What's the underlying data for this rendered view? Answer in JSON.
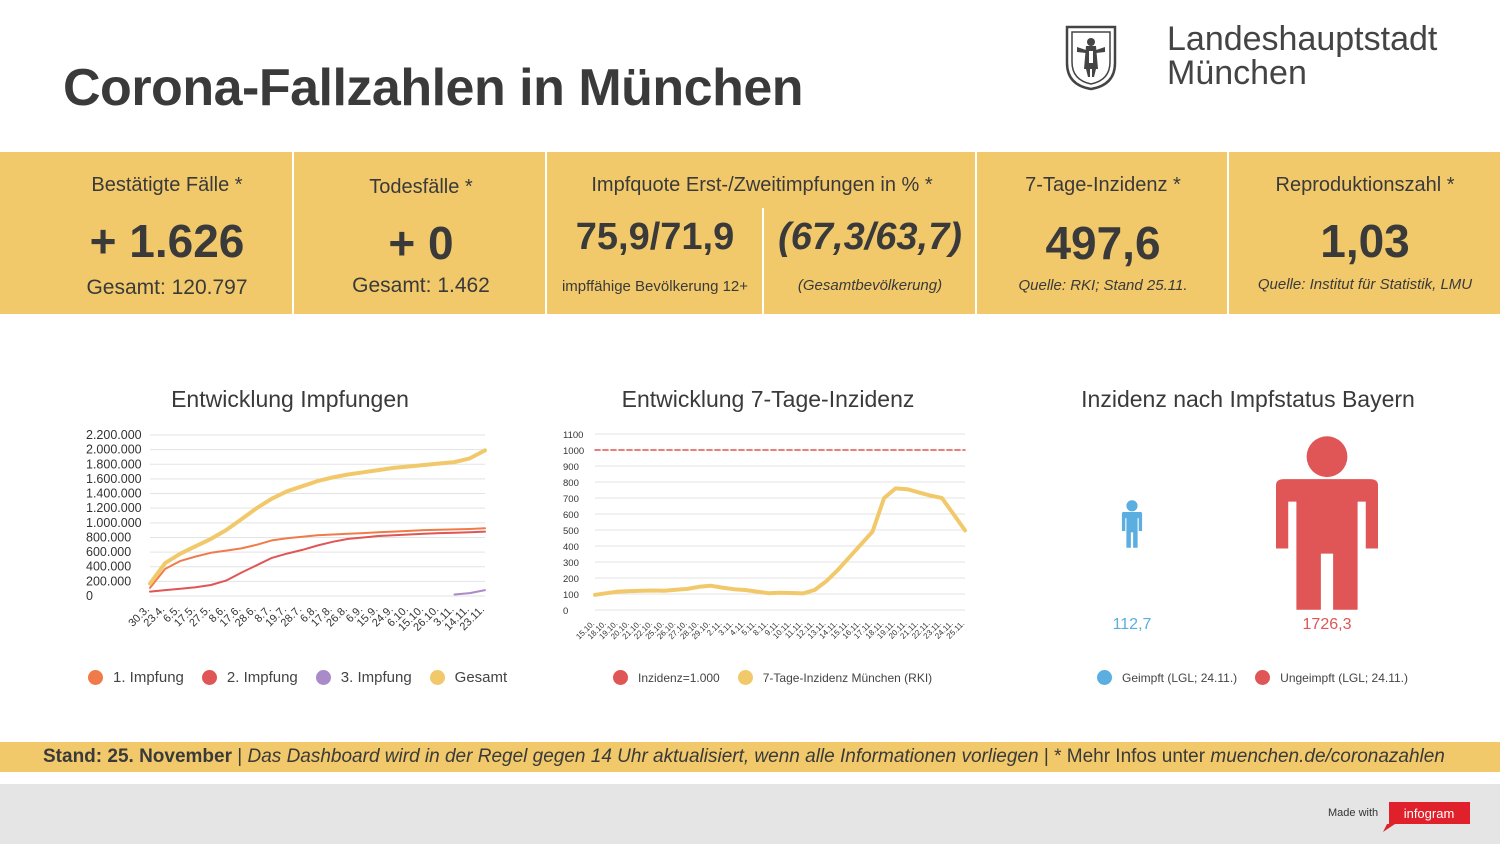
{
  "page": {
    "title": "Corona-Fallzahlen in München",
    "logo_line1": "Landeshauptstadt",
    "logo_line2": "München"
  },
  "stats": {
    "cases": {
      "label": "Bestätigte Fälle *",
      "value": "+ 1.626",
      "sub": "Gesamt: 120.797"
    },
    "deaths": {
      "label": "Todesfälle *",
      "value": "+ 0",
      "sub": "Gesamt: 1.462"
    },
    "vaccination": {
      "label": "Impfquote Erst-/Zweitimpfungen in % *",
      "value_eligible": "75,9/71,9",
      "sub_eligible": "impffähige Bevölkerung 12+",
      "value_total": "(67,3/63,7)",
      "sub_total": "(Gesamtbevölkerung)"
    },
    "incidence": {
      "label": "7-Tage-Inzidenz *",
      "value": "497,6",
      "sub": "Quelle: RKI; Stand 25.11."
    },
    "r_value": {
      "label": "Reproduktionszahl *",
      "value": "1,03",
      "sub": "Quelle: Institut für Statistik, LMU"
    }
  },
  "chart_data": [
    {
      "type": "line",
      "title": "Entwicklung Impfungen",
      "x": [
        "30.3.",
        "23.4.",
        "6.5.",
        "17.5.",
        "27.5.",
        "8.6.",
        "17.6.",
        "28.6.",
        "8.7.",
        "19.7.",
        "28.7.",
        "6.8.",
        "17.8.",
        "26.8.",
        "6.9.",
        "15.9.",
        "24.9.",
        "6.10.",
        "15.10.",
        "26.10.",
        "3.11.",
        "14.11.",
        "23.11."
      ],
      "ylim": [
        0,
        2200000
      ],
      "yticks": [
        "2.200.000",
        "2.000.000",
        "1.800.000",
        "1.600.000",
        "1.400.000",
        "1.200.000",
        "1.000.000",
        "800.000",
        "600.000",
        "400.000",
        "200.000",
        "0"
      ],
      "yticks_values": [
        2200000,
        2000000,
        1800000,
        1600000,
        1400000,
        1200000,
        1000000,
        800000,
        600000,
        400000,
        200000,
        0
      ],
      "series": [
        {
          "name": "1. Impfung",
          "color": "#f07b4a",
          "values": [
            110000,
            370000,
            480000,
            540000,
            590000,
            620000,
            650000,
            700000,
            760000,
            790000,
            810000,
            830000,
            840000,
            850000,
            860000,
            870000,
            880000,
            890000,
            900000,
            905000,
            910000,
            915000,
            925000
          ]
        },
        {
          "name": "2. Impfung",
          "color": "#e05555",
          "values": [
            60000,
            80000,
            100000,
            120000,
            150000,
            210000,
            320000,
            420000,
            520000,
            580000,
            630000,
            690000,
            740000,
            780000,
            800000,
            820000,
            830000,
            840000,
            850000,
            860000,
            865000,
            870000,
            880000
          ]
        },
        {
          "name": "3. Impfung",
          "color": "#a98bc9",
          "values": [
            null,
            null,
            null,
            null,
            null,
            null,
            null,
            null,
            null,
            null,
            null,
            null,
            null,
            null,
            null,
            null,
            null,
            null,
            null,
            null,
            20000,
            40000,
            80000
          ]
        },
        {
          "name": "Gesamt",
          "color": "#f1c96b",
          "values": [
            170000,
            450000,
            580000,
            680000,
            780000,
            900000,
            1050000,
            1200000,
            1330000,
            1430000,
            1500000,
            1570000,
            1620000,
            1660000,
            1690000,
            1720000,
            1750000,
            1770000,
            1790000,
            1810000,
            1830000,
            1880000,
            1990000
          ]
        }
      ]
    },
    {
      "type": "line",
      "title": "Entwicklung 7-Tage-Inzidenz",
      "x": [
        "15.10.",
        "18.10.",
        "19.10.",
        "20.10.",
        "21.10.",
        "22.10.",
        "25.10.",
        "26.10.",
        "27.10.",
        "28.10.",
        "29.10.",
        "2.11.",
        "3.11.",
        "4.11.",
        "5.11.",
        "8.11.",
        "9.11.",
        "10.11.",
        "11.11.",
        "12.11.",
        "13.11.",
        "14.11.",
        "15.11.",
        "16.11.",
        "17.11.",
        "18.11.",
        "19.11.",
        "20.11.",
        "21.11.",
        "22.11.",
        "23.11.",
        "24.11.",
        "25.11."
      ],
      "ylim": [
        0,
        1100
      ],
      "yticks": [
        "1100",
        "1000",
        "900",
        "800",
        "700",
        "600",
        "500",
        "400",
        "300",
        "200",
        "100",
        "0"
      ],
      "yticks_values": [
        1100,
        1000,
        900,
        800,
        700,
        600,
        500,
        400,
        300,
        200,
        100,
        0
      ],
      "series": [
        {
          "name": "Inzidenz=1.000",
          "color": "#e05555",
          "values": [
            1000,
            1000,
            1000,
            1000,
            1000,
            1000,
            1000,
            1000,
            1000,
            1000,
            1000,
            1000,
            1000,
            1000,
            1000,
            1000,
            1000,
            1000,
            1000,
            1000,
            1000,
            1000,
            1000,
            1000,
            1000,
            1000,
            1000,
            1000,
            1000,
            1000,
            1000,
            1000,
            1000
          ]
        },
        {
          "name": "7-Tage-Inzidenz München (RKI)",
          "color": "#f1c96b",
          "values": [
            95,
            105,
            115,
            118,
            120,
            122,
            120,
            126,
            132,
            145,
            152,
            140,
            130,
            125,
            115,
            105,
            108,
            106,
            104,
            125,
            180,
            250,
            330,
            410,
            490,
            700,
            760,
            755,
            735,
            715,
            700,
            600,
            497.6
          ]
        }
      ]
    },
    {
      "type": "pictogram",
      "title": "Inzidenz nach Impfstatus Bayern",
      "categories": [
        "Geimpft (LGL; 24.11.)",
        "Ungeimpft (LGL; 24.11.)"
      ],
      "values": [
        112.7,
        1726.3
      ],
      "value_labels": [
        "112,7",
        "1726,3"
      ],
      "colors": [
        "#5aaee0",
        "#e05555"
      ]
    }
  ],
  "footer": {
    "date": "Stand: 25. November",
    "sep1": "|",
    "note": "Das Dashboard wird in der Regel gegen 14 Uhr aktualisiert, wenn alle Informationen vorliegen",
    "sep2": "|",
    "more": "* Mehr Infos unter",
    "link": "muenchen.de/coronazahlen",
    "made_with": "Made with",
    "brand": "infogram"
  }
}
